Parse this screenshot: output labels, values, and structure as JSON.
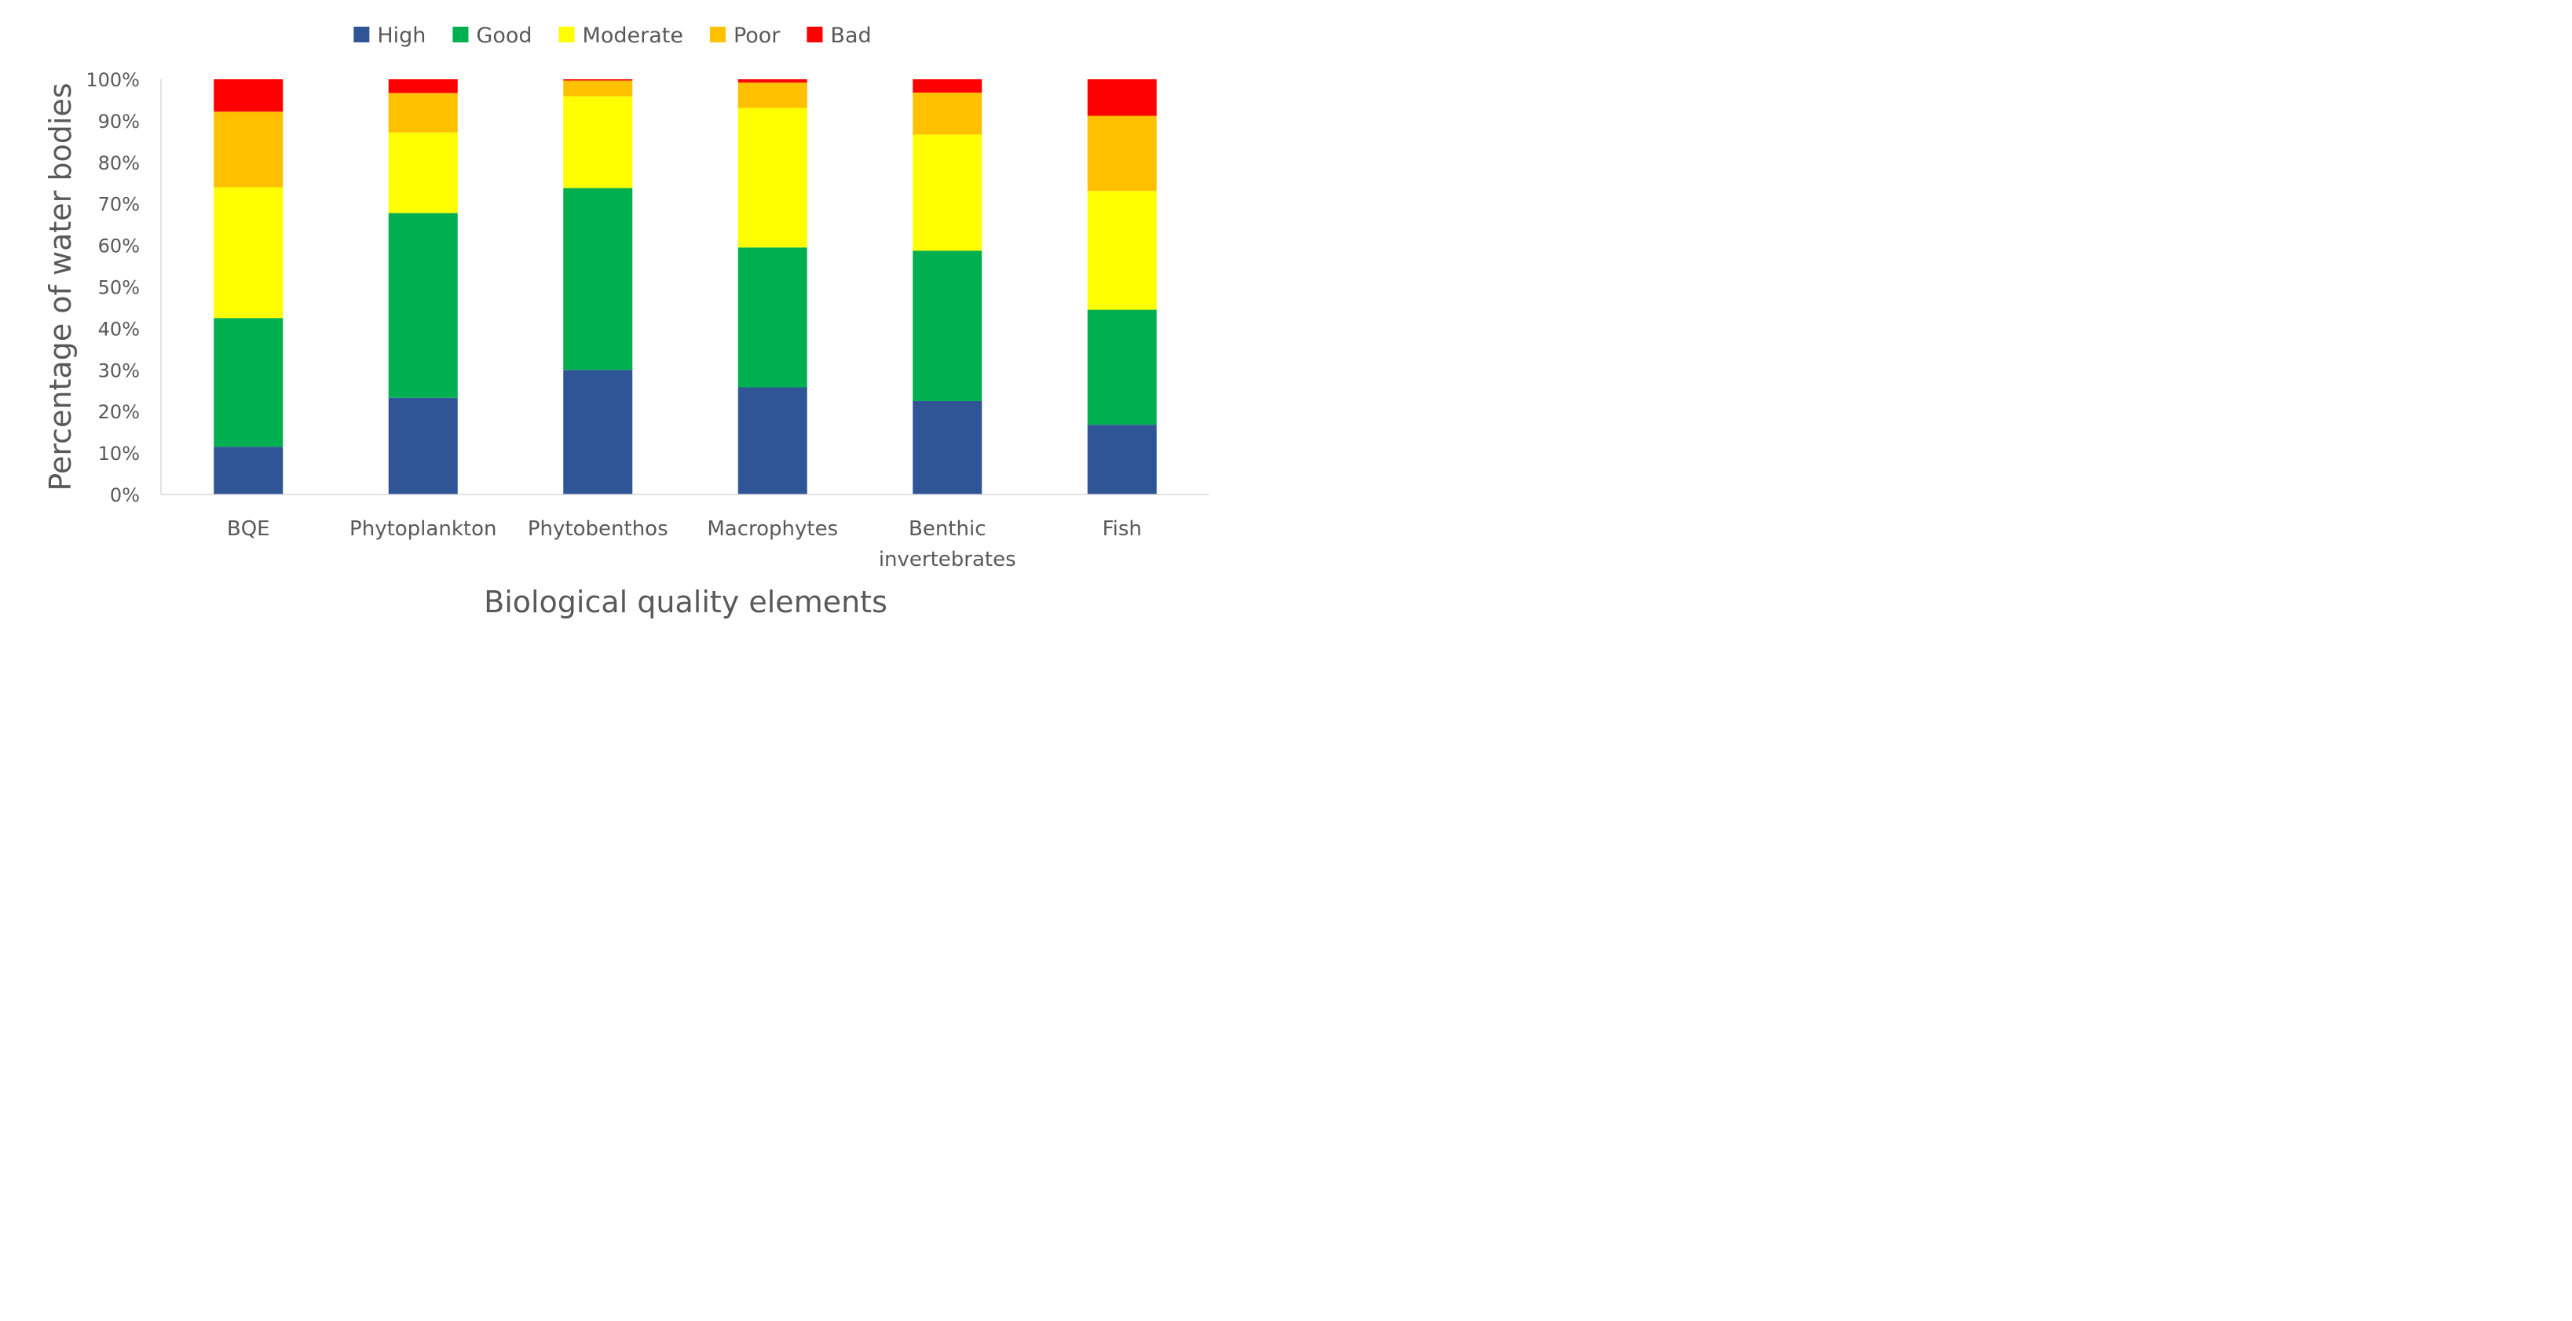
{
  "chart_data": {
    "type": "bar",
    "stacked": true,
    "title": "",
    "xlabel": "Biological quality elements",
    "ylabel": "Percentage of water bodies",
    "ylim": [
      0,
      100
    ],
    "y_tick_step": 10,
    "y_tick_suffix": "%",
    "grid": false,
    "legend_position": "top",
    "categories": [
      [
        "BQE"
      ],
      [
        "Phytoplankton"
      ],
      [
        "Phytobenthos"
      ],
      [
        "Macrophytes"
      ],
      [
        "Benthic",
        "invertebrates"
      ],
      [
        "Fish"
      ]
    ],
    "series": [
      {
        "name": "High",
        "color": "#2F5597",
        "values": [
          11.5,
          23.3,
          30.0,
          25.8,
          22.5,
          16.8
        ]
      },
      {
        "name": "Good",
        "color": "#00B050",
        "values": [
          31.0,
          44.5,
          43.8,
          33.7,
          36.2,
          27.7
        ]
      },
      {
        "name": "Moderate",
        "color": "#FFFF00",
        "values": [
          31.5,
          19.4,
          22.1,
          33.6,
          28.0,
          28.6
        ]
      },
      {
        "name": "Poor",
        "color": "#FFC000",
        "values": [
          18.2,
          9.5,
          3.8,
          6.1,
          10.1,
          18.1
        ]
      },
      {
        "name": "Bad",
        "color": "#FF0000",
        "values": [
          7.8,
          3.3,
          0.3,
          0.8,
          3.2,
          8.8
        ]
      }
    ]
  }
}
